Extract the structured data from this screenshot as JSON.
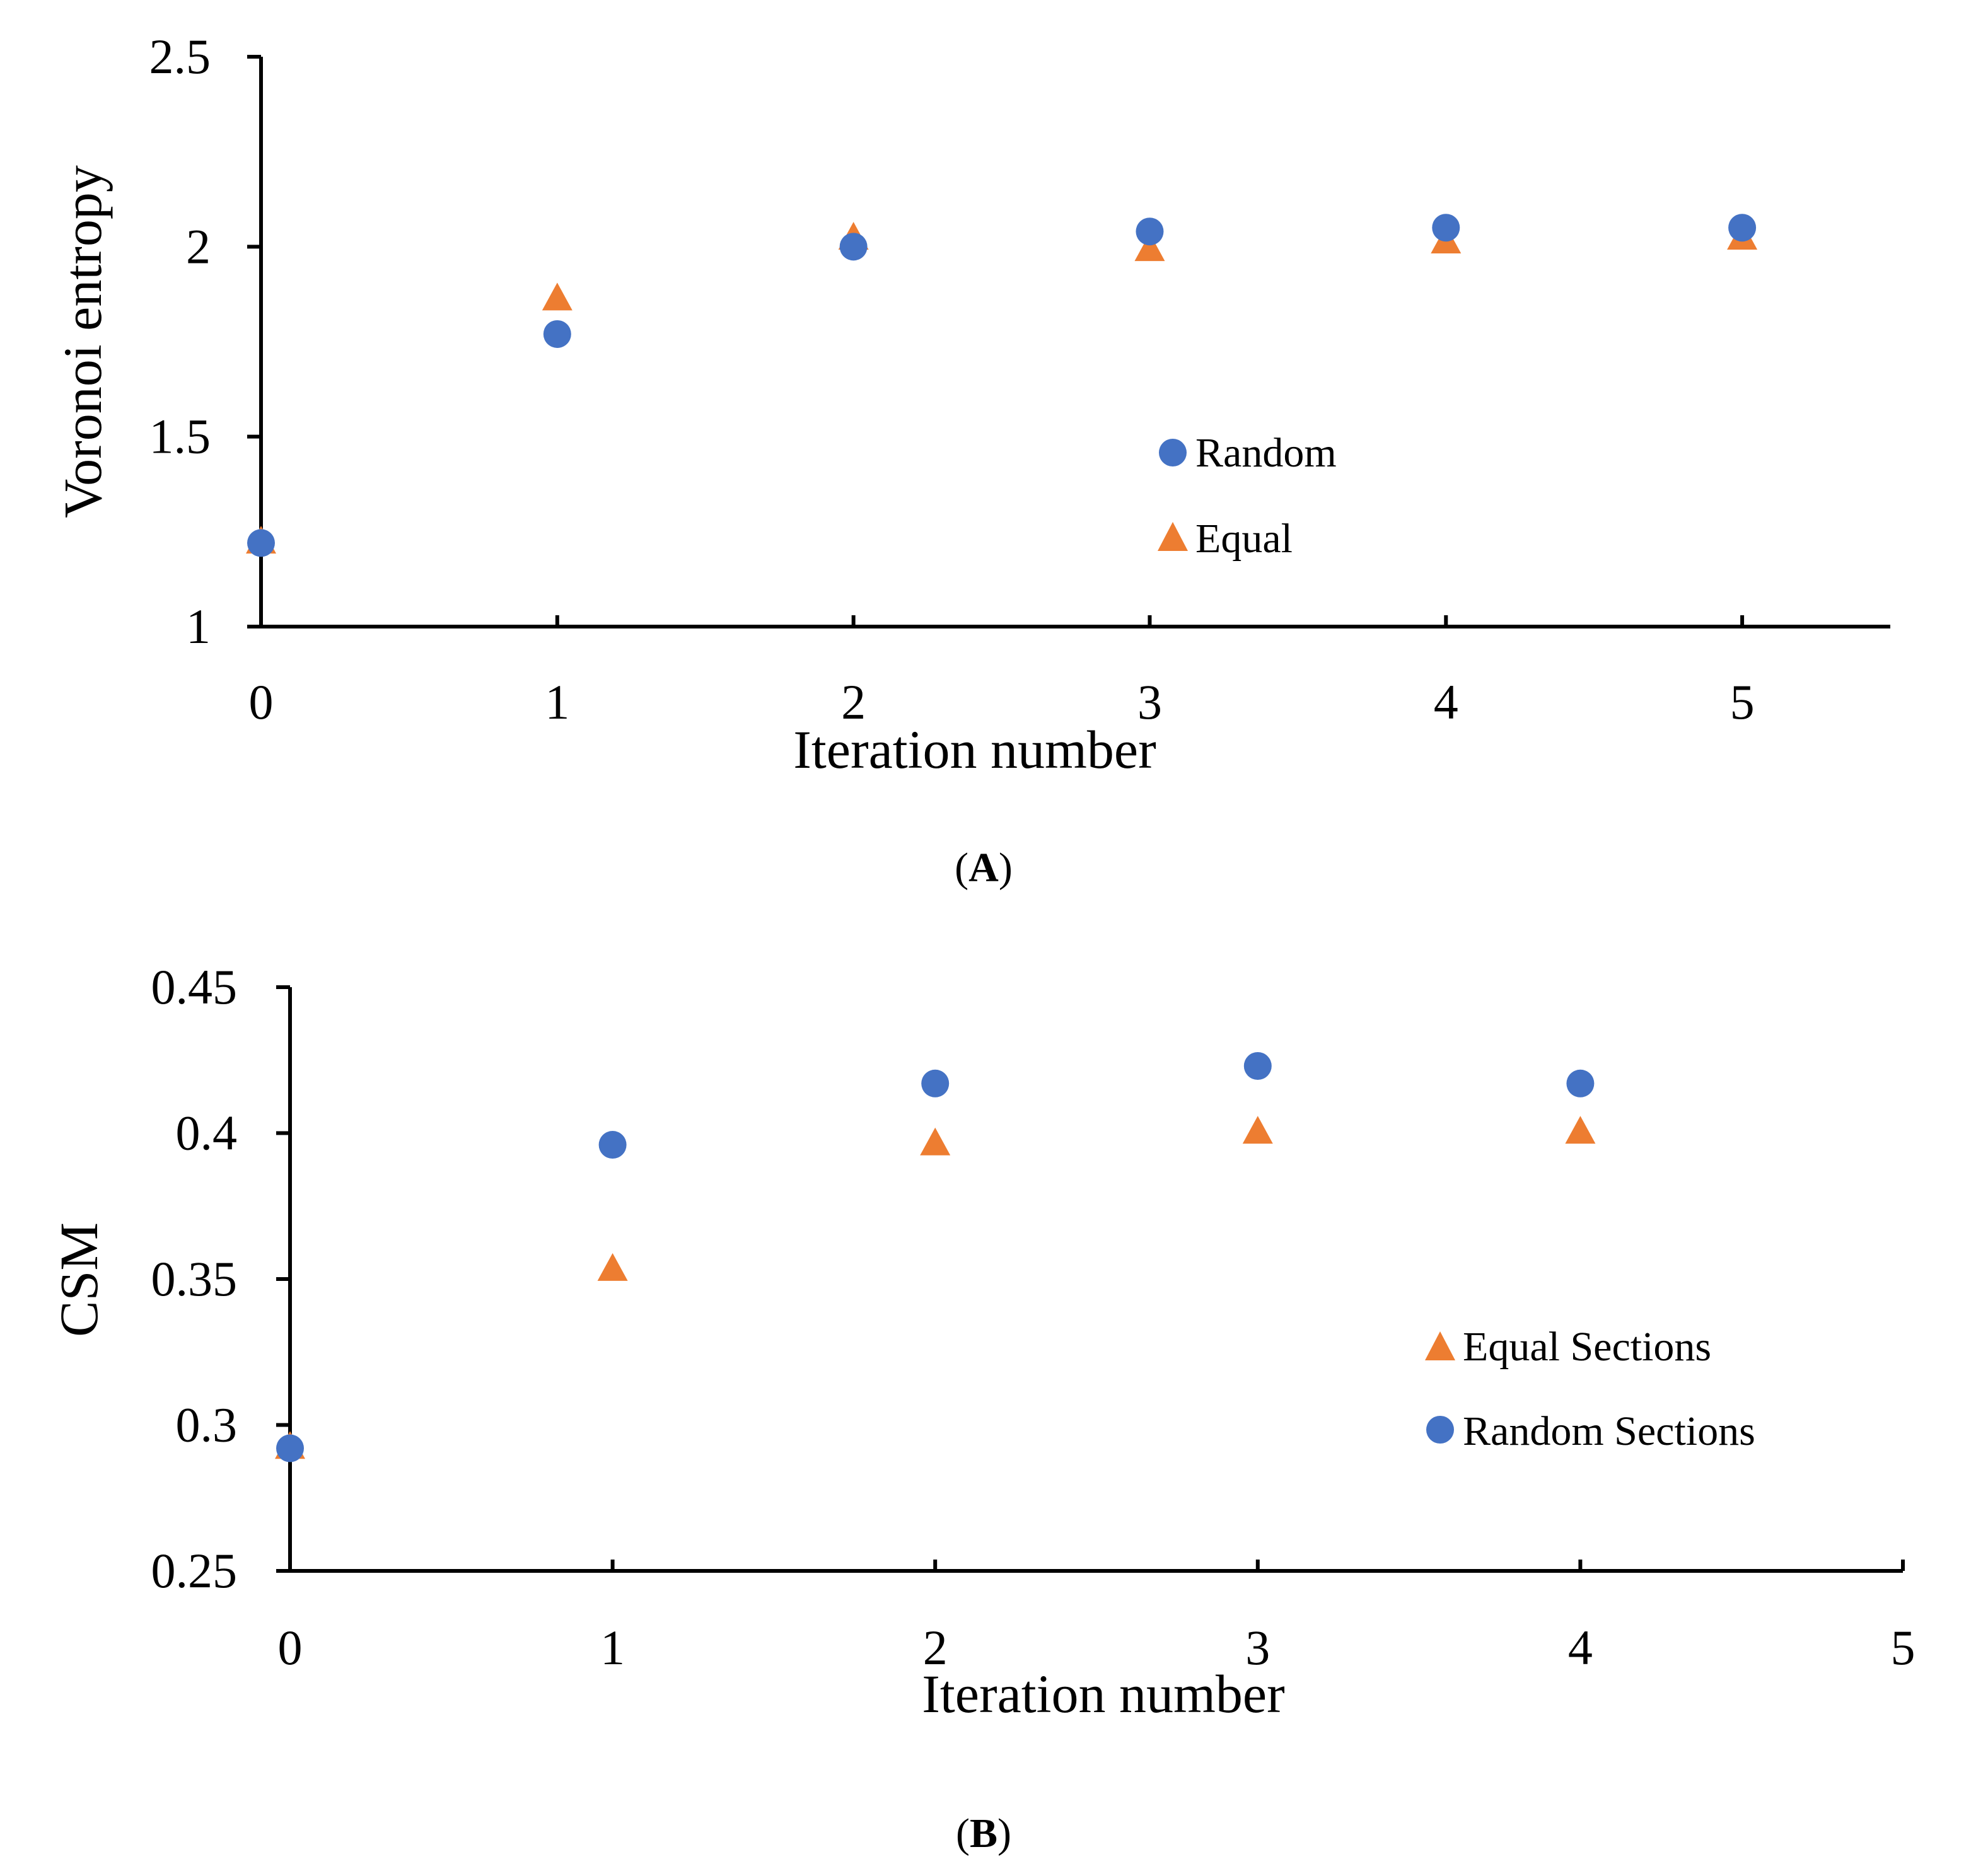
{
  "chart_data": [
    {
      "type": "scatter",
      "panel_label": "A",
      "xlabel": "Iteration number",
      "ylabel": "Voronoi entropy",
      "xlim": [
        0,
        5.5
      ],
      "ylim": [
        1,
        2.5
      ],
      "xticks": [
        "0",
        "1",
        "2",
        "3",
        "4",
        "5"
      ],
      "yticks": [
        "1",
        "1.5",
        "2",
        "2.5"
      ],
      "legend_position": "center-right",
      "series": [
        {
          "name": "Random",
          "marker": "circle",
          "color": "#4472C4",
          "x": [
            0,
            1,
            2,
            3,
            4,
            5
          ],
          "y": [
            1.22,
            1.77,
            2.0,
            2.04,
            2.05,
            2.05
          ]
        },
        {
          "name": "Equal",
          "marker": "triangle",
          "color": "#ED7D31",
          "x": [
            0,
            1,
            2,
            3,
            4,
            5
          ],
          "y": [
            1.22,
            1.86,
            2.02,
            1.99,
            2.01,
            2.02
          ]
        }
      ]
    },
    {
      "type": "scatter",
      "panel_label": "B",
      "xlabel": "Iteration number",
      "ylabel": "CSM",
      "xlim": [
        0,
        5
      ],
      "ylim": [
        0.25,
        0.45
      ],
      "xticks": [
        "0",
        "1",
        "2",
        "3",
        "4",
        "5"
      ],
      "yticks": [
        "0.25",
        "0.3",
        "0.35",
        "0.4",
        "0.45"
      ],
      "legend_position": "bottom-right",
      "series": [
        {
          "name": "Equal Sections",
          "marker": "triangle",
          "color": "#ED7D31",
          "x": [
            0,
            1,
            2,
            3,
            4
          ],
          "y": [
            0.292,
            0.353,
            0.396,
            0.4,
            0.4
          ]
        },
        {
          "name": "Random Sections",
          "marker": "circle",
          "color": "#4472C4",
          "x": [
            0,
            1,
            2,
            3,
            4
          ],
          "y": [
            0.292,
            0.396,
            0.417,
            0.423,
            0.417
          ]
        }
      ]
    }
  ]
}
